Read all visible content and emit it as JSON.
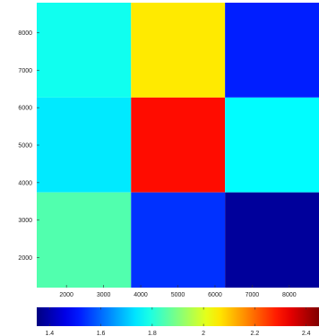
{
  "chart_data": {
    "type": "heatmap",
    "title": "",
    "xlabel": "",
    "ylabel": "",
    "x_range": [
      1200,
      8800
    ],
    "y_range": [
      1200,
      8800
    ],
    "x_ticks": [
      2000,
      3000,
      4000,
      5000,
      6000,
      7000,
      8000
    ],
    "y_ticks": [
      2000,
      3000,
      4000,
      5000,
      6000,
      7000,
      8000
    ],
    "x_edges": [
      1200,
      3740,
      6270,
      8800
    ],
    "y_edges": [
      1200,
      3740,
      6270,
      8800
    ],
    "grid": false,
    "colormap": "jet",
    "colorbar": {
      "location": "bottom",
      "range": [
        1.35,
        2.45
      ],
      "ticks": [
        1.4,
        1.6,
        1.8,
        2,
        2.2,
        2.4
      ]
    },
    "cells": [
      [
        1.78,
        2.06,
        1.52
      ],
      [
        1.74,
        2.3,
        1.76
      ],
      [
        1.85,
        1.54,
        1.38
      ]
    ]
  }
}
